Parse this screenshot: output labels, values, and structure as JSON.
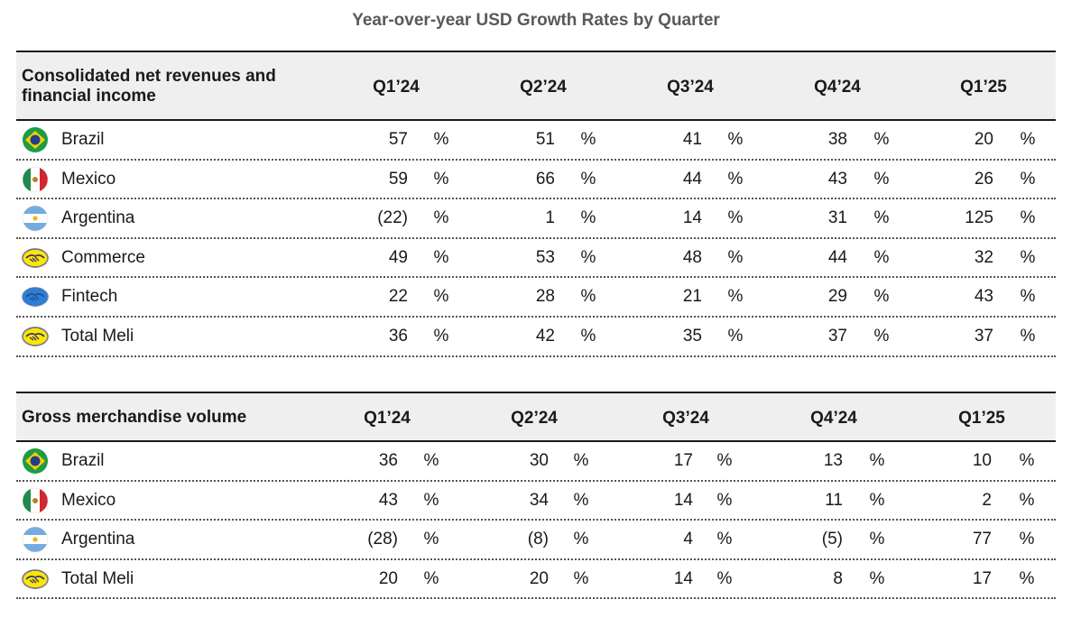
{
  "title": "Year-over-year USD Growth Rates by Quarter",
  "table1": {
    "header": "Consolidated net revenues and financial income",
    "quarters": [
      "Q1’24",
      "Q2’24",
      "Q3’24",
      "Q4’24",
      "Q1’25"
    ],
    "rows": [
      {
        "label": "Brazil",
        "icon": "brazil-flag-icon",
        "values": [
          "57",
          "51",
          "41",
          "38",
          "20"
        ]
      },
      {
        "label": "Mexico",
        "icon": "mexico-flag-icon",
        "values": [
          "59",
          "66",
          "44",
          "43",
          "26"
        ]
      },
      {
        "label": "Argentina",
        "icon": "argentina-flag-icon",
        "values": [
          "(22)",
          "1",
          "14",
          "31",
          "125"
        ]
      },
      {
        "label": "Commerce",
        "icon": "handshake-yellow-icon",
        "values": [
          "49",
          "53",
          "48",
          "44",
          "32"
        ]
      },
      {
        "label": "Fintech",
        "icon": "handshake-blue-icon",
        "values": [
          "22",
          "28",
          "21",
          "29",
          "43"
        ]
      },
      {
        "label": "Total Meli",
        "icon": "handshake-yellow-icon",
        "values": [
          "36",
          "42",
          "35",
          "37",
          "37"
        ]
      }
    ]
  },
  "table2": {
    "header": "Gross merchandise volume",
    "quarters": [
      "Q1’24",
      "Q2’24",
      "Q3’24",
      "Q4’24",
      "Q1’25"
    ],
    "rows": [
      {
        "label": "Brazil",
        "icon": "brazil-flag-icon",
        "values": [
          "36",
          "30",
          "17",
          "13",
          "10"
        ]
      },
      {
        "label": "Mexico",
        "icon": "mexico-flag-icon",
        "values": [
          "43",
          "34",
          "14",
          "11",
          "2"
        ]
      },
      {
        "label": "Argentina",
        "icon": "argentina-flag-icon",
        "values": [
          "(28)",
          "(8)",
          "4",
          "(5)",
          "77"
        ]
      },
      {
        "label": "Total Meli",
        "icon": "handshake-yellow-icon",
        "values": [
          "20",
          "20",
          "14",
          "8",
          "17"
        ]
      }
    ]
  },
  "percent_sign": "%",
  "colors": {
    "header_bg": "#efefef",
    "title": "#595959",
    "brazil_green": "#1f9a48",
    "brazil_yellow": "#f5d100",
    "brazil_blue": "#233e8b",
    "mexico_green": "#1f8a4c",
    "mexico_red": "#d22630",
    "argentina_blue": "#74acdf",
    "meli_yellow": "#ffe600",
    "meli_blue": "#2d7fd6"
  }
}
